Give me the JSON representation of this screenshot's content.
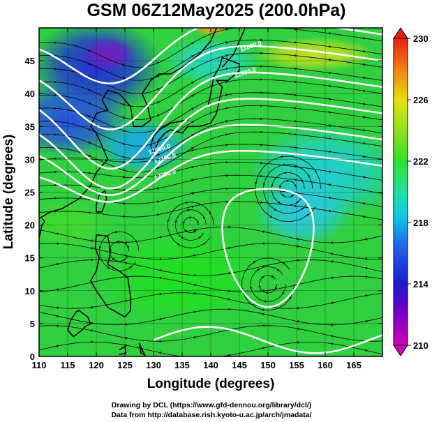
{
  "chart_data": {
    "type": "heatmap",
    "title": "GSM 06Z12May2025 (200.0hPa)",
    "xlabel": "Longitude (degrees)",
    "ylabel": "Latitude (degrees)",
    "xlim": [
      110,
      170
    ],
    "ylim": [
      0,
      50
    ],
    "x_ticks": [
      110,
      115,
      120,
      125,
      130,
      135,
      140,
      145,
      150,
      155,
      160,
      165
    ],
    "y_ticks": [
      0,
      5,
      10,
      15,
      20,
      25,
      30,
      35,
      40,
      45
    ],
    "grid": true,
    "colorbar": {
      "min": 210,
      "max": 230,
      "ticks": [
        210,
        214,
        218,
        222,
        226,
        230
      ],
      "placement": "right"
    },
    "overlays": [
      "wind streamlines with arrows",
      "white geopotential height contours",
      "coastlines"
    ],
    "contour_labels": [
      "11700.0",
      "11800.0",
      "11900.0",
      "12000.0",
      "12100.0",
      "12200.0"
    ]
  },
  "credits": {
    "line1": "Drawing by DCL (https://www.gfd-dennou.org/library/dcl/)",
    "line2": "Data from http://database.rish.kyoto-u.ac.jp/arch/jmadata/"
  }
}
